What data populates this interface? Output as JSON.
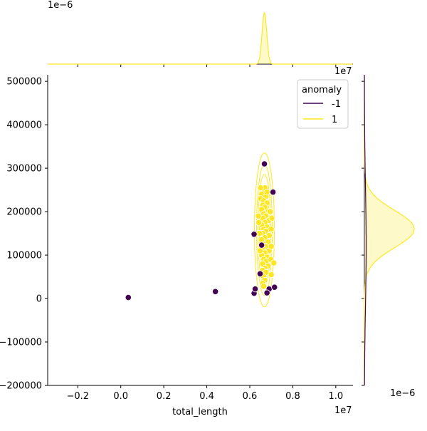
{
  "chart_data": {
    "type": "scatter",
    "subtype": "jointplot",
    "xlabel": "total_length",
    "ylabel": "",
    "x_offset_text": "1e7",
    "y_offset_text": "",
    "top_marginal_offset_text": "1e−6",
    "top_marginal_right_offset_text": "1e7",
    "right_marginal_offset_text": "1e−6",
    "xlim": [
      -0.34,
      1.08
    ],
    "ylim": [
      -200000,
      515000
    ],
    "xtick_labels": [
      "−0.2",
      "0.0",
      "0.2",
      "0.4",
      "0.6",
      "0.8",
      "1.0"
    ],
    "xtick_values": [
      -0.2,
      0.0,
      0.2,
      0.4,
      0.6,
      0.8,
      1.0
    ],
    "ytick_labels": [
      "−200000",
      "−100000",
      "0",
      "100000",
      "200000",
      "300000",
      "400000",
      "500000"
    ],
    "ytick_values": [
      -200000,
      -100000,
      0,
      100000,
      200000,
      300000,
      400000,
      500000
    ],
    "legend": {
      "title": "anomaly",
      "position": "top-right",
      "entries": [
        {
          "label": "-1",
          "color": "#440154"
        },
        {
          "label": "1",
          "color": "#fde725"
        }
      ]
    },
    "series": [
      {
        "name": "-1",
        "color": "#440154",
        "points": [
          [
            0.035,
            2500
          ],
          [
            0.44,
            16000
          ],
          [
            0.62,
            148000
          ],
          [
            0.62,
            12000
          ],
          [
            0.625,
            22000
          ],
          [
            0.668,
            310000
          ],
          [
            0.708,
            245000
          ],
          [
            0.69,
            22000
          ],
          [
            0.715,
            26000
          ],
          [
            0.68,
            13000
          ],
          [
            0.655,
            123000
          ],
          [
            0.648,
            57000
          ]
        ]
      },
      {
        "name": "1",
        "color": "#fde725",
        "points": [
          [
            0.66,
            250000
          ],
          [
            0.67,
            255000
          ],
          [
            0.655,
            240000
          ],
          [
            0.65,
            230000
          ],
          [
            0.675,
            235000
          ],
          [
            0.665,
            225000
          ],
          [
            0.68,
            220000
          ],
          [
            0.66,
            215000
          ],
          [
            0.67,
            210000
          ],
          [
            0.655,
            205000
          ],
          [
            0.685,
            200000
          ],
          [
            0.665,
            195000
          ],
          [
            0.675,
            190000
          ],
          [
            0.66,
            185000
          ],
          [
            0.69,
            180000
          ],
          [
            0.67,
            175000
          ],
          [
            0.655,
            170000
          ],
          [
            0.68,
            165000
          ],
          [
            0.665,
            160000
          ],
          [
            0.675,
            155000
          ],
          [
            0.66,
            150000
          ],
          [
            0.69,
            145000
          ],
          [
            0.67,
            140000
          ],
          [
            0.655,
            135000
          ],
          [
            0.685,
            130000
          ],
          [
            0.665,
            125000
          ],
          [
            0.675,
            120000
          ],
          [
            0.66,
            115000
          ],
          [
            0.69,
            110000
          ],
          [
            0.67,
            105000
          ],
          [
            0.655,
            100000
          ],
          [
            0.68,
            95000
          ],
          [
            0.665,
            90000
          ],
          [
            0.675,
            85000
          ],
          [
            0.66,
            80000
          ],
          [
            0.685,
            75000
          ],
          [
            0.67,
            70000
          ],
          [
            0.66,
            65000
          ],
          [
            0.675,
            60000
          ],
          [
            0.665,
            50000
          ],
          [
            0.67,
            42000
          ],
          [
            0.66,
            35000
          ],
          [
            0.665,
            28000
          ],
          [
            0.695,
            200000
          ],
          [
            0.7,
            160000
          ],
          [
            0.64,
            190000
          ],
          [
            0.645,
            150000
          ],
          [
            0.7,
            120000
          ],
          [
            0.698,
            90000
          ],
          [
            0.712,
            82000
          ],
          [
            0.7,
            55000
          ],
          [
            0.648,
            110000
          ],
          [
            0.642,
            175000
          ],
          [
            0.703,
            185000
          ],
          [
            0.68,
            245000
          ],
          [
            0.65,
            255000
          ]
        ]
      }
    ],
    "kde_top": {
      "color": "#fde725",
      "center": 0.668,
      "width": 0.011
    },
    "kde_right": {
      "color": "#fde725",
      "center": 160000,
      "width": 43000
    }
  }
}
